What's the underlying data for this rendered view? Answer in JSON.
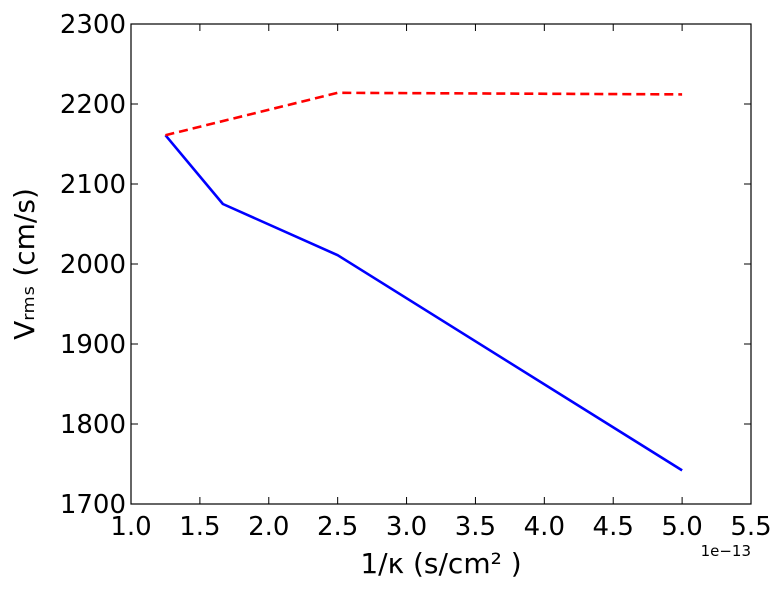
{
  "chart_data": {
    "type": "line",
    "title": "",
    "xlabel": "1/κ (s/cm² )",
    "ylabel": "Vᵣₘₛ (cm/s)",
    "x_offset_text": "1e−13",
    "xlim": [
      1.0,
      5.5
    ],
    "ylim": [
      1700,
      2300
    ],
    "x_ticks": [
      1.0,
      1.5,
      2.0,
      2.5,
      3.0,
      3.5,
      4.0,
      4.5,
      5.0,
      5.5
    ],
    "x_tick_labels": [
      "1.0",
      "1.5",
      "2.0",
      "2.5",
      "3.0",
      "3.5",
      "4.0",
      "4.5",
      "5.0",
      "5.5"
    ],
    "y_ticks": [
      1700,
      1800,
      1900,
      2000,
      2100,
      2200,
      2300
    ],
    "y_tick_labels": [
      "1700",
      "1800",
      "1900",
      "2000",
      "2100",
      "2200",
      "2300"
    ],
    "grid": false,
    "legend": "none",
    "series": [
      {
        "color": "#0000ff",
        "style": "solid",
        "x": [
          1.25,
          1.667,
          2.5,
          5.0
        ],
        "y": [
          2161,
          2075,
          2011,
          1742
        ]
      },
      {
        "color": "#ff0000",
        "style": "dashed",
        "x": [
          1.25,
          2.5,
          5.0
        ],
        "y": [
          2161,
          2214,
          2212
        ]
      }
    ]
  }
}
